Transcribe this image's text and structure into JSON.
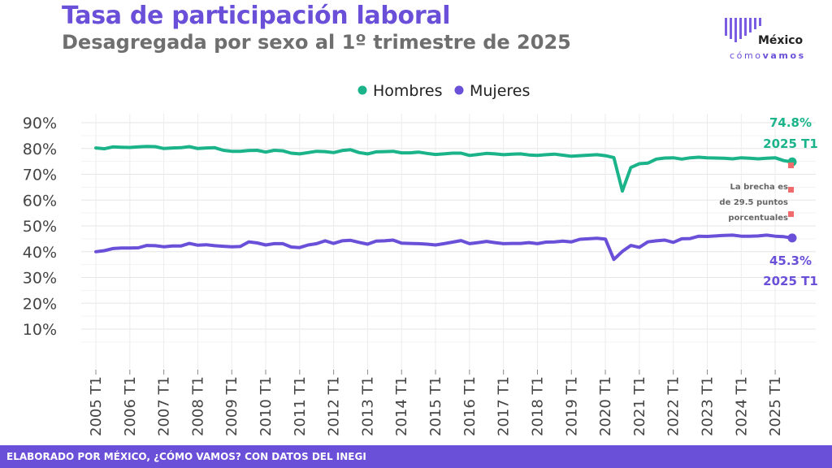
{
  "title": "Tasa de participación laboral",
  "subtitle": "Desagregada por sexo al 1º trimestre de 2025",
  "logo": {
    "word": "México",
    "sub_light": "cómo",
    "sub_bold": "vamos"
  },
  "footer": "ELABORADO POR MÉXICO, ¿CÓMO VAMOS? CON DATOS DEL INEGI",
  "colors": {
    "hombres": "#1ab38a",
    "mujeres": "#6a4fd8",
    "accent": "#6a4fd8",
    "brecha": "#f06b6b"
  },
  "chart_data": {
    "type": "line",
    "x_tick_labels": [
      "2005 T1",
      "2006 T1",
      "2007 T1",
      "2008 T1",
      "2009 T1",
      "2010 T1",
      "2011 T1",
      "2012 T1",
      "2013 T1",
      "2014 T1",
      "2015 T1",
      "2016 T1",
      "2017 T1",
      "2018 T1",
      "2019 T1",
      "2020 T1",
      "2021 T1",
      "2022 T1",
      "2023 T1",
      "2024 T1",
      "2025 T1"
    ],
    "y_tick_labels": [
      "10%",
      "20%",
      "30%",
      "40%",
      "50%",
      "60%",
      "70%",
      "80%",
      "90%"
    ],
    "ylim": [
      0,
      90
    ],
    "legend": [
      "Hombres",
      "Mujeres"
    ],
    "legend_position": "top-center",
    "grid": true,
    "series": [
      {
        "name": "Hombres",
        "color": "#1ab38a",
        "values": [
          80.2,
          79.9,
          80.6,
          80.5,
          80.4,
          80.6,
          80.8,
          80.7,
          80.0,
          80.2,
          80.3,
          80.7,
          80.0,
          80.2,
          80.3,
          79.3,
          78.9,
          78.9,
          79.2,
          79.3,
          78.6,
          79.3,
          79.1,
          78.2,
          77.9,
          78.4,
          78.9,
          78.8,
          78.4,
          79.2,
          79.5,
          78.4,
          77.9,
          78.7,
          78.8,
          78.9,
          78.3,
          78.3,
          78.6,
          78.1,
          77.7,
          77.9,
          78.2,
          78.2,
          77.3,
          77.7,
          78.1,
          77.9,
          77.6,
          77.8,
          77.9,
          77.5,
          77.3,
          77.6,
          77.8,
          77.4,
          77.0,
          77.2,
          77.4,
          77.6,
          77.2,
          76.5,
          63.5,
          72.6,
          74.1,
          74.3,
          75.9,
          76.3,
          76.4,
          75.9,
          76.4,
          76.6,
          76.4,
          76.3,
          76.2,
          76.0,
          76.4,
          76.2,
          76.0,
          76.2,
          76.4,
          75.3,
          74.8
        ]
      },
      {
        "name": "Mujeres",
        "color": "#6a4fd8",
        "values": [
          40.0,
          40.4,
          41.2,
          41.4,
          41.4,
          41.5,
          42.4,
          42.3,
          41.9,
          42.2,
          42.2,
          43.2,
          42.5,
          42.7,
          42.3,
          42.1,
          41.9,
          42.0,
          43.8,
          43.4,
          42.6,
          43.1,
          43.1,
          41.8,
          41.6,
          42.6,
          43.1,
          44.2,
          43.2,
          44.2,
          44.4,
          43.6,
          42.9,
          44.1,
          44.2,
          44.5,
          43.3,
          43.2,
          43.1,
          42.9,
          42.6,
          43.1,
          43.7,
          44.3,
          43.1,
          43.5,
          44.0,
          43.5,
          43.1,
          43.2,
          43.2,
          43.5,
          43.1,
          43.7,
          43.8,
          44.1,
          43.8,
          44.8,
          45.0,
          45.2,
          44.9,
          37.0,
          40.1,
          42.4,
          41.7,
          43.8,
          44.2,
          44.5,
          43.6,
          45.0,
          45.1,
          46.0,
          45.9,
          46.1,
          46.3,
          46.4,
          46.0,
          46.0,
          46.1,
          46.4,
          46.0,
          45.8,
          45.3
        ]
      }
    ],
    "annotations": {
      "hombres_value": "74.8%",
      "hombres_period": "2025 T1",
      "mujeres_value": "45.3%",
      "mujeres_period": "2025 T1",
      "brecha_line1": "La brecha es",
      "brecha_line2": "de 29.5 puntos",
      "brecha_line3": "porcentuales"
    }
  }
}
